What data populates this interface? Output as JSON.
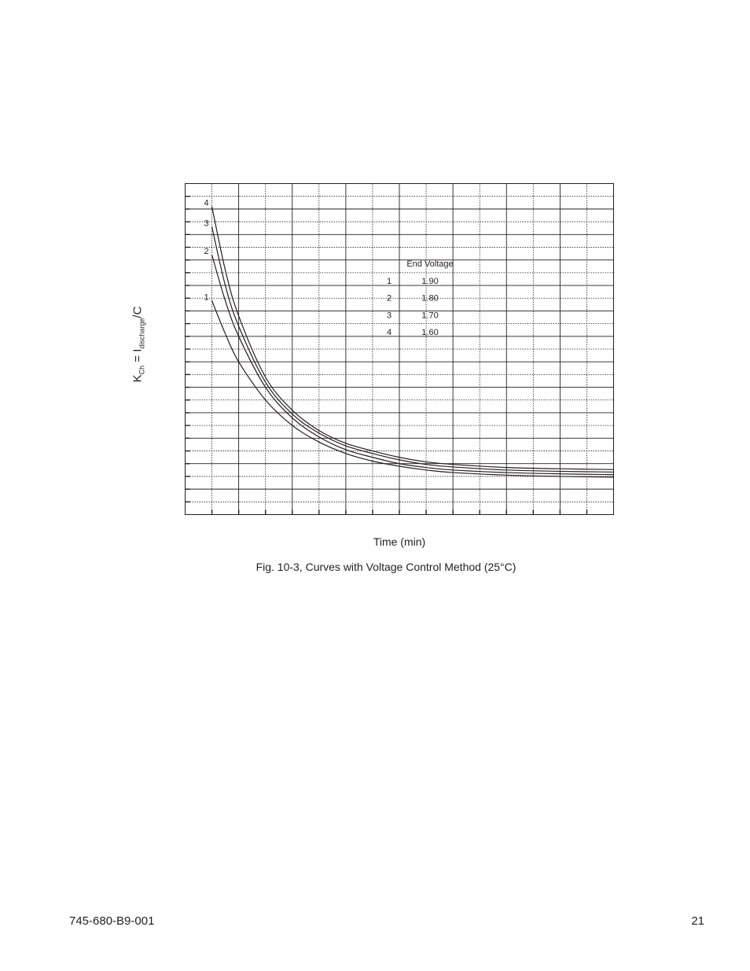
{
  "chart_data": {
    "type": "line",
    "xlabel": "Time (min)",
    "ylabel_main": "K",
    "ylabel_sub1": "Ch",
    "ylabel_eq": " = I",
    "ylabel_sub2": "discharge",
    "ylabel_end": "/C",
    "caption": "Fig. 10-3, Curves with Voltage Control Method (25°C)",
    "xlim": [
      0,
      16
    ],
    "ylim": [
      0,
      13
    ],
    "grid": true,
    "legend_title": "End Voltage",
    "series": [
      {
        "name": "1",
        "end_voltage": "1.90",
        "x": [
          1,
          1.5,
          2,
          3,
          4,
          5,
          6,
          7,
          8,
          9,
          10,
          12,
          14,
          16
        ],
        "y": [
          8.4,
          7.1,
          6.0,
          4.5,
          3.5,
          2.85,
          2.4,
          2.1,
          1.9,
          1.75,
          1.65,
          1.55,
          1.5,
          1.47
        ]
      },
      {
        "name": "2",
        "end_voltage": "1.80",
        "x": [
          1,
          1.5,
          2,
          3,
          4,
          5,
          6,
          7,
          8,
          9,
          10,
          12,
          14,
          16
        ],
        "y": [
          10.2,
          8.4,
          7.0,
          5.0,
          3.8,
          3.05,
          2.55,
          2.25,
          2.0,
          1.85,
          1.75,
          1.65,
          1.6,
          1.57
        ]
      },
      {
        "name": "3",
        "end_voltage": "1.70",
        "x": [
          1,
          1.5,
          2,
          3,
          4,
          5,
          6,
          7,
          8,
          9,
          10,
          12,
          14,
          16
        ],
        "y": [
          11.3,
          9.0,
          7.4,
          5.2,
          3.95,
          3.2,
          2.7,
          2.4,
          2.15,
          1.97,
          1.87,
          1.75,
          1.7,
          1.67
        ]
      },
      {
        "name": "4",
        "end_voltage": "1.60",
        "x": [
          1,
          1.5,
          2,
          3,
          4,
          5,
          6,
          7,
          8,
          9,
          10,
          12,
          14,
          16
        ],
        "y": [
          12.1,
          9.6,
          7.8,
          5.4,
          4.1,
          3.3,
          2.8,
          2.5,
          2.25,
          2.07,
          1.97,
          1.85,
          1.8,
          1.77
        ]
      }
    ]
  },
  "footer": {
    "doc_number": "745-680-B9-001",
    "page_number": "21"
  }
}
